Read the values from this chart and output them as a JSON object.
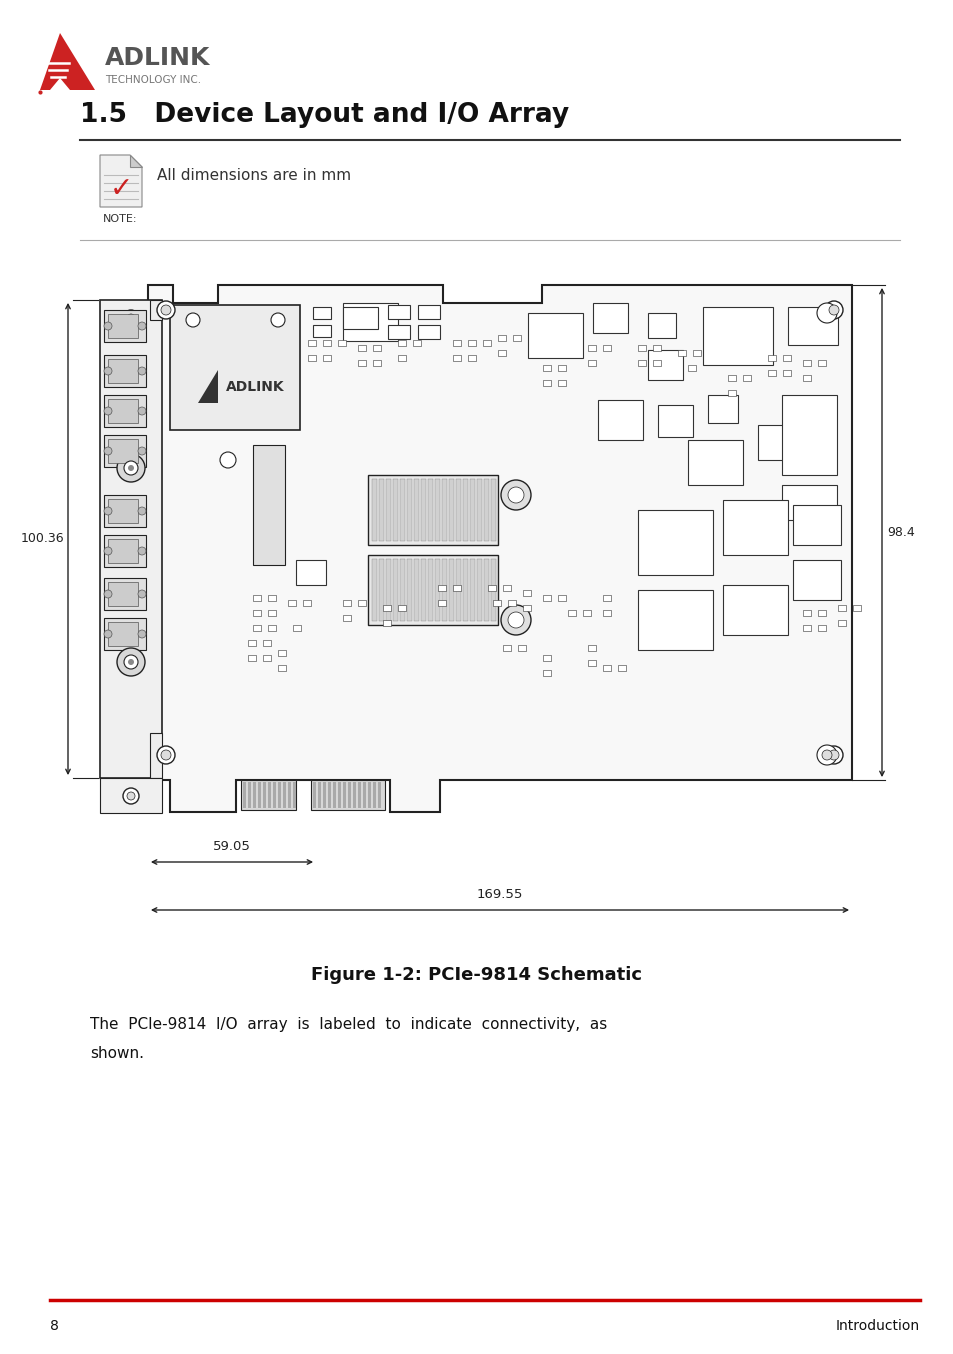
{
  "page_bg": "#ffffff",
  "logo_text_adlink": "ADLINK",
  "logo_text_sub": "TECHNOLOGY INC.",
  "section_title": "1.5   Device Layout and I/O Array",
  "note_text": "All dimensions are in mm",
  "note_label": "NOTE:",
  "figure_caption": "Figure 1-2: PCIe-9814 Schematic",
  "body_line1": "The  PCIe-9814  I/O  array  is  labeled  to  indicate  connectivity,  as",
  "body_line2": "shown.",
  "footer_page": "8",
  "footer_section": "Introduction",
  "footer_line_color": "#cc0000",
  "dim_100_36": "100.36",
  "dim_98_4": "98.4",
  "dim_59_05": "59.05",
  "dim_169_55": "169.55",
  "adlink_logo_red": "#cc2222",
  "line_color": "#222222",
  "pcb_bg": "#f8f8f8",
  "comp_edge": "#333333",
  "comp_fill": "#ffffff"
}
